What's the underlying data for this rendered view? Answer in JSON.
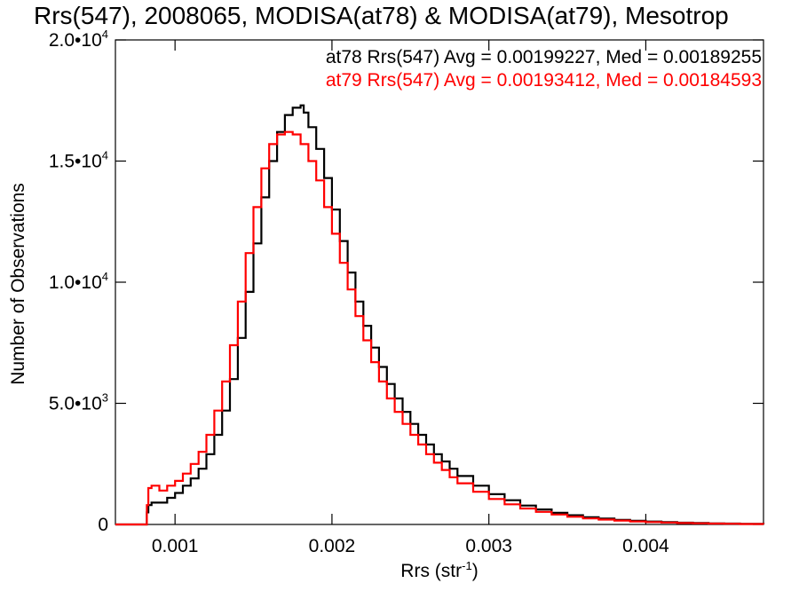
{
  "chart_data": {
    "type": "line",
    "step": true,
    "title": "Rrs(547), 2008065, MODISA(at78) & MODISA(at79), Mesotrop",
    "xlabel_main": "Rrs (str",
    "xlabel_sup": "-1",
    "xlabel_end": ")",
    "ylabel": "Number of Observations",
    "xlim": [
      0.00062,
      0.00475
    ],
    "ylim": [
      0,
      20000
    ],
    "grid": false,
    "x_ticks": [
      {
        "value": 0.001,
        "label": "0.001"
      },
      {
        "value": 0.002,
        "label": "0.002"
      },
      {
        "value": 0.003,
        "label": "0.003"
      },
      {
        "value": 0.004,
        "label": "0.004"
      }
    ],
    "y_ticks": [
      {
        "value": 0,
        "mant": "0",
        "exp": ""
      },
      {
        "value": 5000,
        "mant": "5.0•10",
        "exp": "3"
      },
      {
        "value": 10000,
        "mant": "1.0•10",
        "exp": "4"
      },
      {
        "value": 15000,
        "mant": "1.5•10",
        "exp": "4"
      },
      {
        "value": 20000,
        "mant": "2.0•10",
        "exp": "4"
      }
    ],
    "annotations": [
      {
        "text": "at78 Rrs(547) Avg = 0.00199227, Med = 0.00189255",
        "color": "#000000"
      },
      {
        "text": "at79 Rrs(547) Avg = 0.00193412, Med = 0.00184593",
        "color": "#ff0000"
      }
    ],
    "series": [
      {
        "name": "at78",
        "color": "#000000",
        "x": [
          0.00062,
          0.0008,
          0.00082,
          0.00083,
          0.00085,
          0.0009,
          0.00095,
          0.001,
          0.00105,
          0.0011,
          0.00115,
          0.0012,
          0.00125,
          0.0013,
          0.00135,
          0.0014,
          0.00145,
          0.0015,
          0.00155,
          0.0016,
          0.00165,
          0.0017,
          0.00175,
          0.0018,
          0.00182,
          0.00185,
          0.0019,
          0.00195,
          0.002,
          0.00205,
          0.0021,
          0.00215,
          0.0022,
          0.00225,
          0.0023,
          0.00235,
          0.0024,
          0.00245,
          0.0025,
          0.00255,
          0.0026,
          0.00265,
          0.0027,
          0.00275,
          0.0028,
          0.0029,
          0.003,
          0.0031,
          0.0032,
          0.0033,
          0.0034,
          0.0035,
          0.0036,
          0.0037,
          0.0038,
          0.0039,
          0.004,
          0.0041,
          0.0042,
          0.0043,
          0.0044,
          0.0045,
          0.0046,
          0.00475
        ],
        "y": [
          0,
          0,
          500,
          800,
          900,
          900,
          1100,
          1300,
          1600,
          1900,
          2300,
          2900,
          3700,
          4700,
          6000,
          7700,
          9600,
          11600,
          13500,
          15000,
          16200,
          16900,
          17200,
          17300,
          17000,
          16400,
          15500,
          14300,
          13000,
          11700,
          10400,
          9200,
          8200,
          7300,
          6500,
          5800,
          5200,
          4650,
          4150,
          3700,
          3300,
          2900,
          2600,
          2300,
          2000,
          1600,
          1250,
          1000,
          780,
          620,
          480,
          380,
          300,
          240,
          190,
          150,
          120,
          95,
          75,
          60,
          45,
          35,
          25,
          20
        ]
      },
      {
        "name": "at79",
        "color": "#ff0000",
        "x": [
          0.00062,
          0.0008,
          0.00082,
          0.00083,
          0.00085,
          0.0009,
          0.00095,
          0.001,
          0.00105,
          0.0011,
          0.00115,
          0.0012,
          0.00125,
          0.0013,
          0.00135,
          0.0014,
          0.00145,
          0.0015,
          0.00155,
          0.0016,
          0.00165,
          0.0017,
          0.00175,
          0.0018,
          0.00185,
          0.0019,
          0.00195,
          0.002,
          0.00205,
          0.0021,
          0.00215,
          0.0022,
          0.00225,
          0.0023,
          0.00235,
          0.0024,
          0.00245,
          0.0025,
          0.00255,
          0.0026,
          0.00265,
          0.0027,
          0.00275,
          0.0028,
          0.0029,
          0.003,
          0.0031,
          0.0032,
          0.0033,
          0.0034,
          0.0035,
          0.0036,
          0.0037,
          0.0038,
          0.0039,
          0.004,
          0.0041,
          0.0042,
          0.0043,
          0.0044,
          0.0045,
          0.0046,
          0.00475
        ],
        "y": [
          0,
          0,
          800,
          1500,
          1600,
          1400,
          1600,
          1800,
          2100,
          2500,
          3000,
          3700,
          4700,
          5900,
          7400,
          9200,
          11200,
          13100,
          14700,
          15700,
          16100,
          16200,
          16100,
          15700,
          15000,
          14200,
          13100,
          12000,
          10800,
          9700,
          8600,
          7600,
          6700,
          5900,
          5200,
          4650,
          4150,
          3700,
          3300,
          2900,
          2550,
          2250,
          1950,
          1700,
          1350,
          1050,
          830,
          660,
          520,
          410,
          320,
          250,
          200,
          160,
          125,
          100,
          80,
          60,
          48,
          38,
          28,
          20,
          15
        ]
      }
    ]
  }
}
